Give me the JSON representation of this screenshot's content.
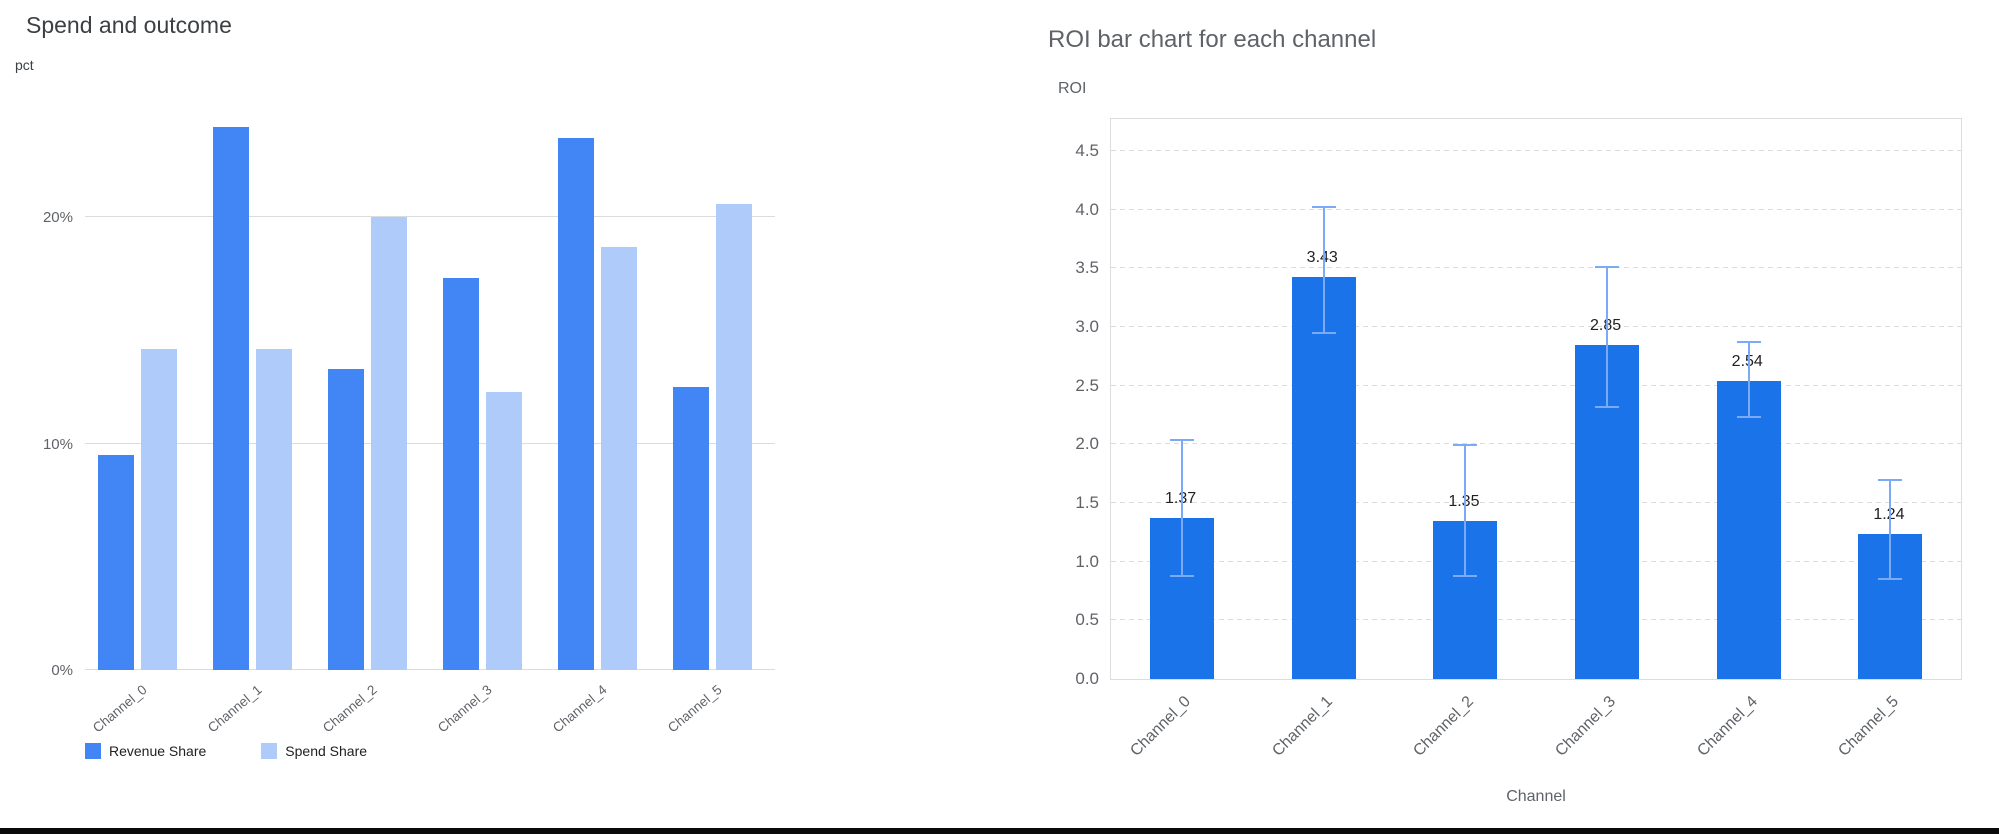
{
  "page": {
    "background": "#ffffff",
    "bottom_bar_color": "#0a0a0a"
  },
  "chart_data": [
    {
      "type": "bar",
      "variant": "grouped",
      "title": "Spend and outcome",
      "ylabel": "pct",
      "xlabel": "",
      "categories": [
        "Channel_0",
        "Channel_1",
        "Channel_2",
        "Channel_3",
        "Channel_4",
        "Channel_5"
      ],
      "series": [
        {
          "name": "Revenue Share",
          "color": "#4285f4",
          "values": [
            9.5,
            24.0,
            13.3,
            17.3,
            23.5,
            12.5
          ]
        },
        {
          "name": "Spend Share",
          "color": "#aecbfa",
          "values": [
            14.2,
            14.2,
            20.0,
            12.3,
            18.7,
            20.6
          ]
        }
      ],
      "y_ticks": [
        "0%",
        "10%",
        "20%"
      ],
      "y_tick_values": [
        0,
        10,
        20
      ],
      "axis_max": 25.4,
      "grid": true,
      "legend_position": "bottom"
    },
    {
      "type": "bar",
      "variant": "error-bars",
      "title": "ROI bar chart for each channel",
      "ylabel": "ROI",
      "xlabel": "Channel",
      "categories": [
        "Channel_0",
        "Channel_1",
        "Channel_2",
        "Channel_3",
        "Channel_4",
        "Channel_5"
      ],
      "values": [
        1.37,
        3.43,
        1.35,
        2.85,
        2.54,
        1.24
      ],
      "bar_labels": [
        "1.37",
        "3.43",
        "1.35",
        "2.85",
        "2.54",
        "1.24"
      ],
      "error_low": [
        0.88,
        2.95,
        0.88,
        2.32,
        2.23,
        0.85
      ],
      "error_high": [
        2.04,
        4.02,
        1.99,
        3.51,
        2.87,
        1.7
      ],
      "bar_color": "#1a73e8",
      "error_color": "#7baaf7",
      "y_ticks": [
        "0.0",
        "0.5",
        "1.0",
        "1.5",
        "2.0",
        "2.5",
        "3.0",
        "3.5",
        "4.0",
        "4.5"
      ],
      "y_tick_values": [
        0,
        0.5,
        1,
        1.5,
        2,
        2.5,
        3,
        3.5,
        4,
        4.5
      ],
      "axis_max": 4.772,
      "grid": "dashed",
      "legend_position": "none"
    }
  ]
}
